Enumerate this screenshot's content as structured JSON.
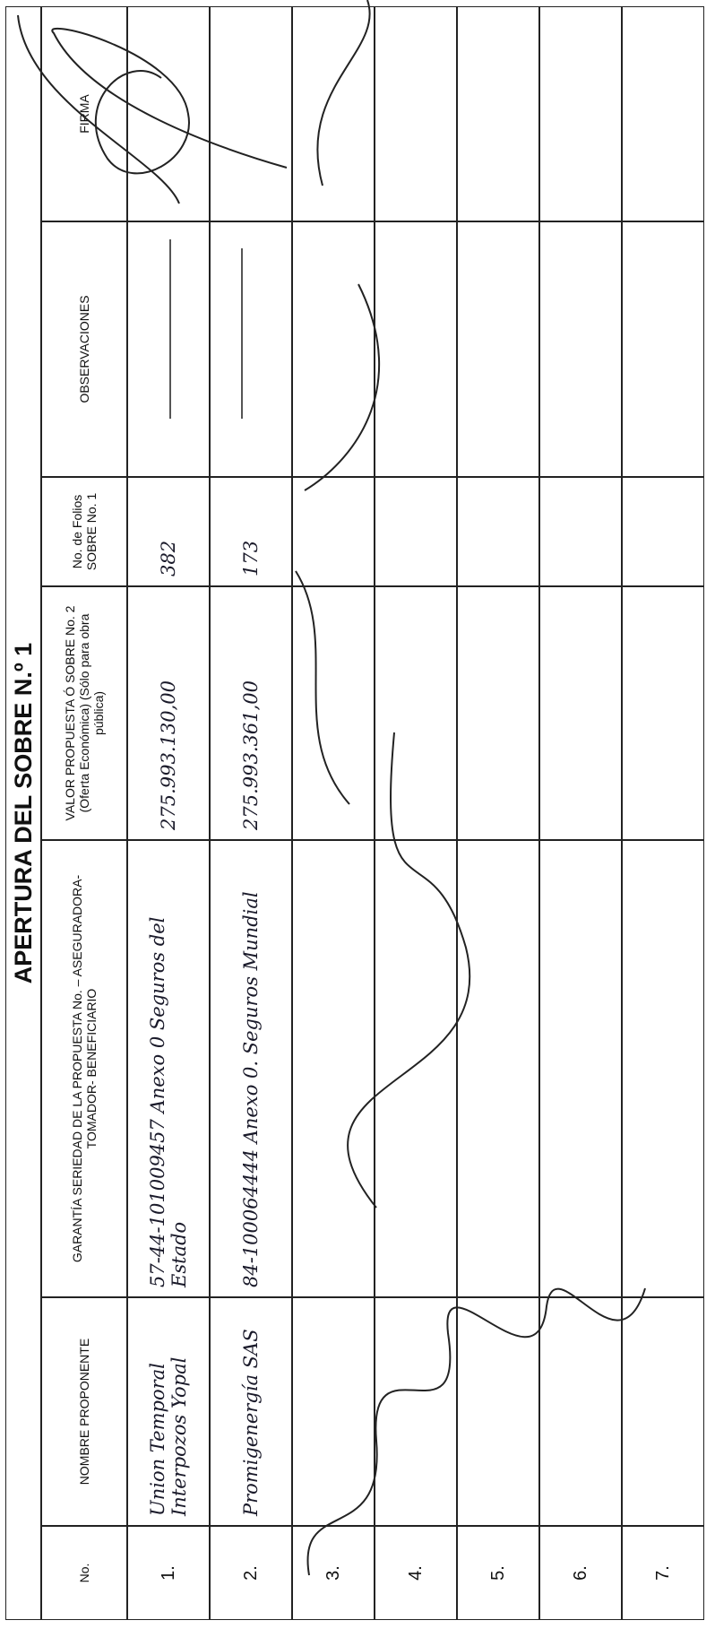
{
  "title": "APERTURA DEL SOBRE N.º 1",
  "table": {
    "headers": [
      "No.",
      "NOMBRE PROPONENTE",
      "GARANTÍA SERIEDAD DE LA PROPUESTA No. – ASEGURADORA- TOMADOR- BENEFICIARIO",
      "VALOR PROPUESTA Ó SOBRE No. 2 (Oferta Económica) (Sólo para obra pública)",
      "No. de Folios SOBRE No. 1",
      "OBSERVACIONES",
      "FIRMA"
    ],
    "rows": [
      [
        "1.",
        "Union Temporal Interpozos Yopal",
        "57-44-101009457 Anexo 0 Seguros del Estado",
        "275.993.130,00",
        "382"
      ],
      [
        "2.",
        "Promigenergía SAS",
        "84-100064444 Anexo 0. Seguros Mundial",
        "275.993.361,00",
        "173"
      ],
      [
        "3."
      ],
      [
        "4."
      ],
      [
        "5."
      ],
      [
        "6."
      ],
      [
        "7."
      ]
    ]
  }
}
